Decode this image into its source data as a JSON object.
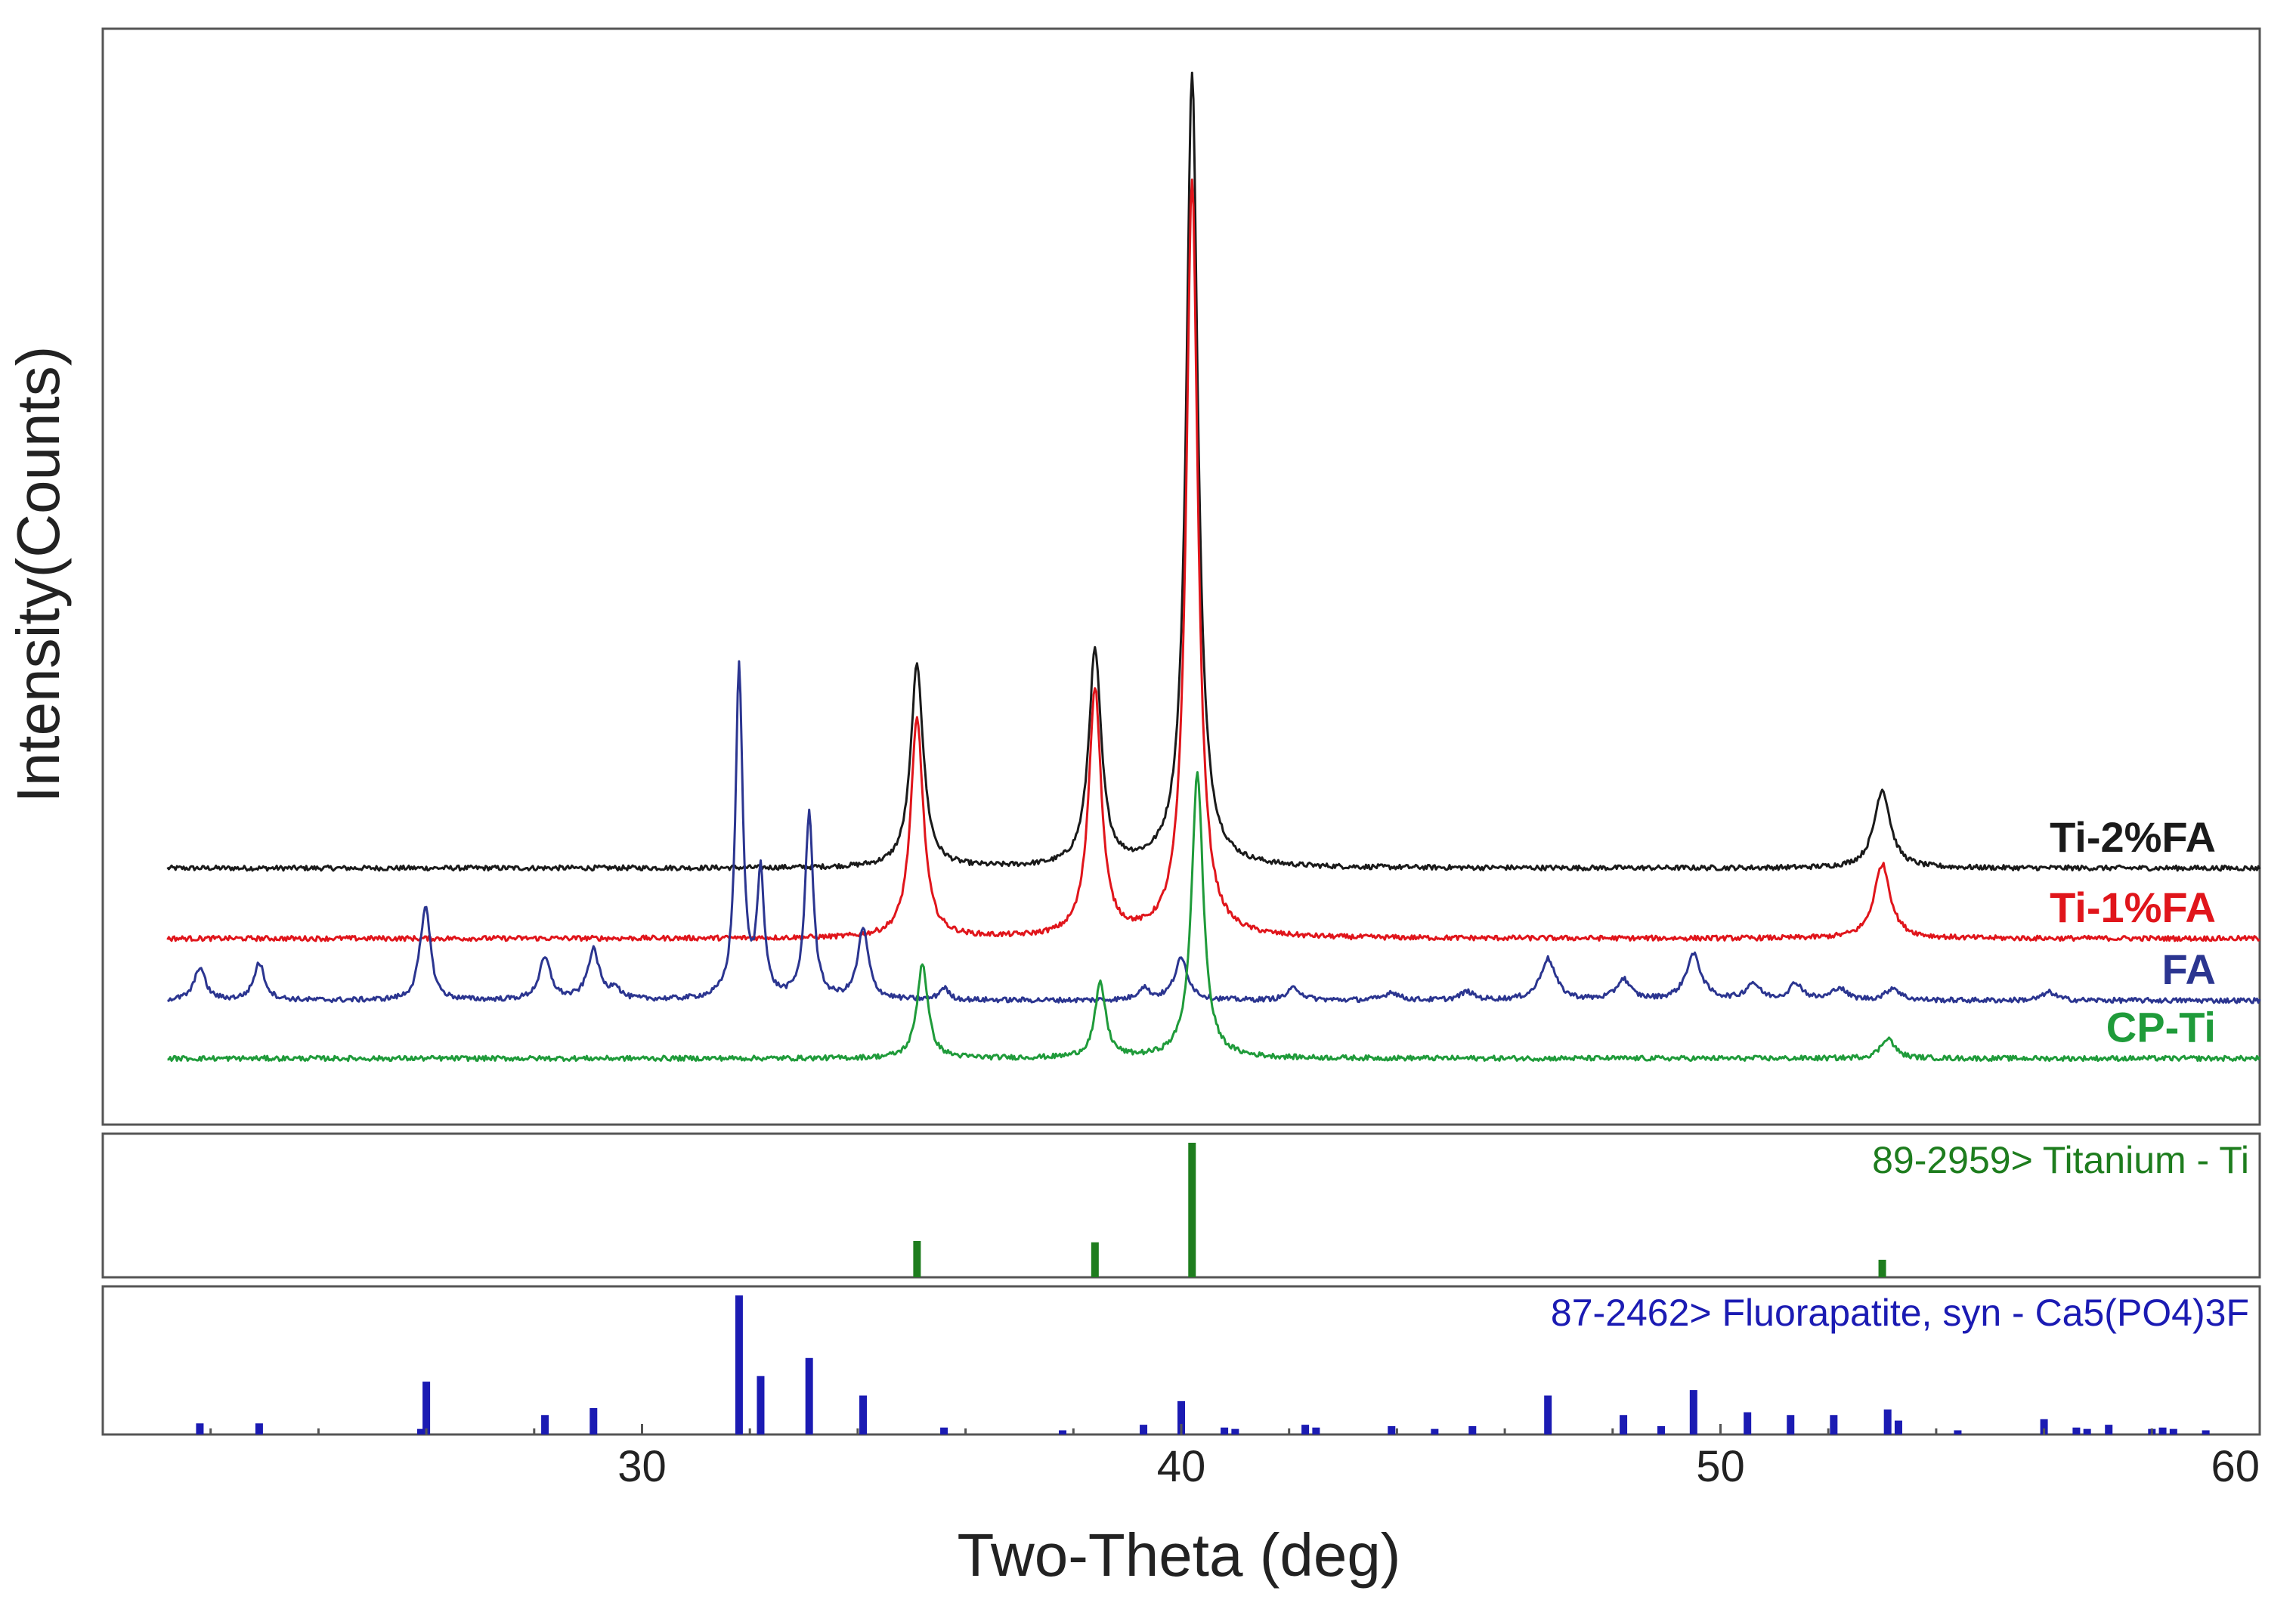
{
  "chart_data": {
    "type": "line",
    "xlabel": "Two-Theta (deg)",
    "ylabel": "Intensity(Counts)",
    "xlim": [
      20,
      60
    ],
    "x_ticks": [
      30,
      40,
      50,
      60
    ],
    "x_tick_labels": [
      "30",
      "40",
      "50",
      "60"
    ],
    "y_unit": "relative intensity (stacked offset)",
    "series": [
      {
        "name": "Ti-2%FA",
        "color": "#1a1a1a",
        "baseline": 0.62,
        "peaks": [
          [
            35.1,
            0.49,
            0.14
          ],
          [
            38.4,
            0.52,
            0.14
          ],
          [
            40.2,
            1.92,
            0.13
          ],
          [
            53.0,
            0.19,
            0.18
          ]
        ]
      },
      {
        "name": "Ti-1%FA",
        "color": "#e0151b",
        "baseline": 0.45,
        "peaks": [
          [
            35.1,
            0.53,
            0.14
          ],
          [
            38.4,
            0.6,
            0.14
          ],
          [
            40.2,
            1.83,
            0.13
          ],
          [
            53.0,
            0.18,
            0.18
          ]
        ]
      },
      {
        "name": "FA",
        "color": "#2b3590",
        "baseline": 0.3,
        "peaks": [
          [
            21.8,
            0.08,
            0.12
          ],
          [
            22.9,
            0.09,
            0.12
          ],
          [
            25.9,
            0.05,
            0.1
          ],
          [
            26.0,
            0.2,
            0.1
          ],
          [
            28.2,
            0.1,
            0.13
          ],
          [
            29.1,
            0.12,
            0.13
          ],
          [
            29.5,
            0.03,
            0.1
          ],
          [
            31.8,
            0.8,
            0.08
          ],
          [
            32.2,
            0.3,
            0.08
          ],
          [
            33.1,
            0.45,
            0.09
          ],
          [
            34.1,
            0.17,
            0.12
          ],
          [
            35.6,
            0.03,
            0.1
          ],
          [
            39.3,
            0.03,
            0.12
          ],
          [
            40.0,
            0.1,
            0.15
          ],
          [
            42.1,
            0.03,
            0.15
          ],
          [
            43.9,
            0.02,
            0.15
          ],
          [
            45.3,
            0.02,
            0.15
          ],
          [
            46.8,
            0.1,
            0.17
          ],
          [
            48.2,
            0.05,
            0.15
          ],
          [
            49.5,
            0.11,
            0.17
          ],
          [
            50.6,
            0.04,
            0.15
          ],
          [
            51.4,
            0.04,
            0.15
          ],
          [
            52.2,
            0.03,
            0.15
          ],
          [
            53.2,
            0.03,
            0.15
          ],
          [
            56.1,
            0.02,
            0.15
          ]
        ]
      },
      {
        "name": "CP-Ti",
        "color": "#1f9b3a",
        "baseline": 0.16,
        "peaks": [
          [
            35.2,
            0.23,
            0.12
          ],
          [
            38.5,
            0.18,
            0.12
          ],
          [
            40.3,
            0.69,
            0.13
          ],
          [
            53.1,
            0.05,
            0.15
          ]
        ]
      }
    ],
    "reference_patterns": [
      {
        "name": "89-2959> Titanium - Ti",
        "color": "#1e7d1e",
        "lines": [
          [
            35.1,
            27
          ],
          [
            38.4,
            26
          ],
          [
            40.2,
            100
          ],
          [
            53.0,
            13
          ]
        ]
      },
      {
        "name": "87-2462> Fluorapatite, syn - Ca5(PO4)3F",
        "color": "#1b1bb3",
        "lines": [
          [
            21.8,
            8
          ],
          [
            22.9,
            8
          ],
          [
            25.9,
            4
          ],
          [
            26.0,
            38
          ],
          [
            28.2,
            14
          ],
          [
            29.1,
            19
          ],
          [
            31.8,
            100
          ],
          [
            32.2,
            42
          ],
          [
            33.1,
            55
          ],
          [
            34.1,
            28
          ],
          [
            35.6,
            5
          ],
          [
            37.8,
            3
          ],
          [
            39.3,
            7
          ],
          [
            40.0,
            24
          ],
          [
            40.8,
            5
          ],
          [
            41.0,
            4
          ],
          [
            42.3,
            7
          ],
          [
            42.5,
            5
          ],
          [
            43.9,
            6
          ],
          [
            44.7,
            4
          ],
          [
            45.4,
            6
          ],
          [
            46.8,
            28
          ],
          [
            48.2,
            14
          ],
          [
            48.9,
            6
          ],
          [
            49.5,
            32
          ],
          [
            50.5,
            16
          ],
          [
            51.3,
            14
          ],
          [
            52.1,
            14
          ],
          [
            53.1,
            18
          ],
          [
            53.3,
            10
          ],
          [
            54.4,
            3
          ],
          [
            56.0,
            11
          ],
          [
            56.6,
            5
          ],
          [
            56.8,
            4
          ],
          [
            57.2,
            7
          ],
          [
            58.0,
            4
          ],
          [
            58.2,
            5
          ],
          [
            58.4,
            4
          ],
          [
            59.0,
            3
          ]
        ]
      }
    ],
    "grid": false,
    "legend": "inline labels at right end of each trace"
  }
}
